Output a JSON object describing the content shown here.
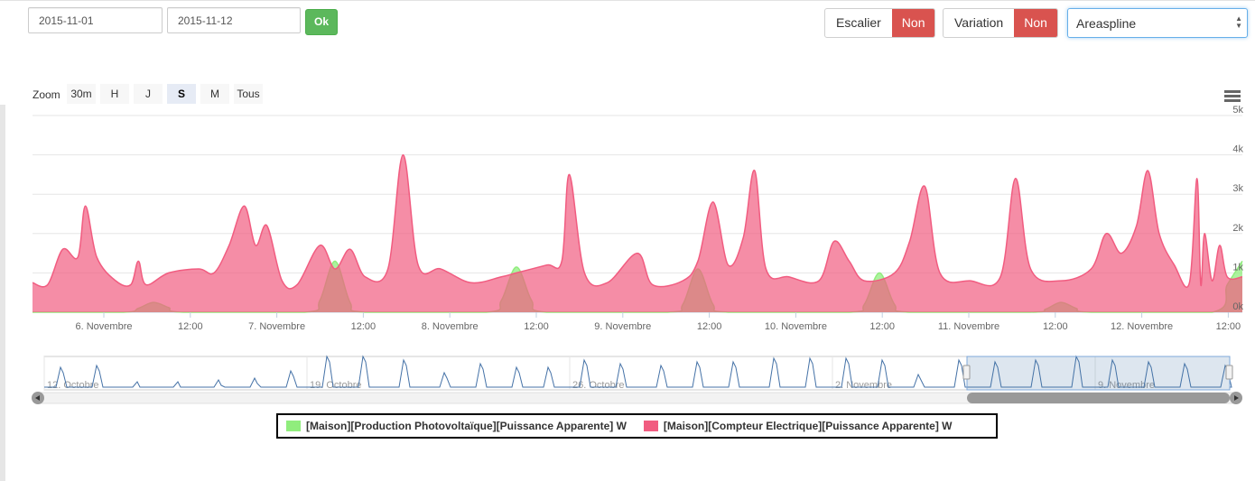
{
  "date_from": "2015-11-01",
  "date_to": "2015-11-12",
  "ok_label": "Ok",
  "escalier": {
    "label": "Escalier",
    "value": "Non"
  },
  "variation": {
    "label": "Variation",
    "value": "Non"
  },
  "chart_type_select": "Areaspline",
  "zoom": {
    "label": "Zoom",
    "buttons": [
      "30m",
      "H",
      "J",
      "S",
      "M",
      "Tous"
    ],
    "active": "S"
  },
  "colors": {
    "production": "#90ed7d",
    "compteur": "#f15c80",
    "navigator_line": "#4572a7"
  },
  "chart_data": {
    "type": "area",
    "y_ticks": [
      "0k",
      "1k",
      "2k",
      "3k",
      "4k",
      "5k"
    ],
    "ylim": [
      0,
      5000
    ],
    "xlim": [
      "2015-11-05T20:00",
      "2015-11-12T12:00"
    ],
    "x_tick_labels": [
      "6. Novembre",
      "12:00",
      "7. Novembre",
      "12:00",
      "8. Novembre",
      "12:00",
      "9. Novembre",
      "12:00",
      "10. Novembre",
      "12:00",
      "11. Novembre",
      "12:00",
      "12. Novembre",
      "12:00"
    ],
    "navigator_labels": [
      "12. Octobre",
      "19. Octobre",
      "26. Octobre",
      "2. Novembre",
      "9. Novembre"
    ],
    "series": [
      {
        "name": "[Maison][Production Photovoltaïque][Puissance Apparente] W",
        "points": [
          [
            "2015-11-05T20:00",
            0
          ],
          [
            "2015-11-06T08:00",
            0
          ],
          [
            "2015-11-06T10:00",
            100
          ],
          [
            "2015-11-06T12:00",
            250
          ],
          [
            "2015-11-06T14:00",
            120
          ],
          [
            "2015-11-06T16:00",
            0
          ],
          [
            "2015-11-07T08:00",
            0
          ],
          [
            "2015-11-07T10:00",
            300
          ],
          [
            "2015-11-07T12:00",
            1300
          ],
          [
            "2015-11-07T14:00",
            250
          ],
          [
            "2015-11-07T16:00",
            0
          ],
          [
            "2015-11-08T08:00",
            0
          ],
          [
            "2015-11-08T10:00",
            300
          ],
          [
            "2015-11-08T12:00",
            1150
          ],
          [
            "2015-11-08T14:00",
            300
          ],
          [
            "2015-11-08T16:00",
            0
          ],
          [
            "2015-11-09T08:00",
            0
          ],
          [
            "2015-11-09T10:00",
            200
          ],
          [
            "2015-11-09T12:00",
            1100
          ],
          [
            "2015-11-09T14:00",
            200
          ],
          [
            "2015-11-09T16:00",
            0
          ],
          [
            "2015-11-10T08:00",
            0
          ],
          [
            "2015-11-10T10:00",
            200
          ],
          [
            "2015-11-10T12:00",
            1000
          ],
          [
            "2015-11-10T14:00",
            200
          ],
          [
            "2015-11-10T16:00",
            0
          ],
          [
            "2015-11-11T08:00",
            0
          ],
          [
            "2015-11-11T10:00",
            80
          ],
          [
            "2015-11-11T12:00",
            250
          ],
          [
            "2015-11-11T14:00",
            100
          ],
          [
            "2015-11-11T16:00",
            0
          ],
          [
            "2015-11-12T08:00",
            0
          ],
          [
            "2015-11-12T10:00",
            700
          ],
          [
            "2015-11-12T12:00",
            1300
          ]
        ]
      },
      {
        "name": "[Maison][Compteur Electrique][Puissance Apparente] W",
        "points": [
          [
            "2015-11-05T20:00",
            750
          ],
          [
            "2015-11-05T22:00",
            700
          ],
          [
            "2015-11-06T00:00",
            1600
          ],
          [
            "2015-11-06T02:00",
            1400
          ],
          [
            "2015-11-06T03:00",
            2700
          ],
          [
            "2015-11-06T04:30",
            1400
          ],
          [
            "2015-11-06T07:00",
            800
          ],
          [
            "2015-11-06T09:00",
            700
          ],
          [
            "2015-11-06T10:00",
            1300
          ],
          [
            "2015-11-06T11:00",
            700
          ],
          [
            "2015-11-06T14:00",
            1000
          ],
          [
            "2015-11-06T18:00",
            1100
          ],
          [
            "2015-11-06T20:00",
            1000
          ],
          [
            "2015-11-06T22:00",
            1700
          ],
          [
            "2015-11-07T00:00",
            2700
          ],
          [
            "2015-11-07T01:30",
            1700
          ],
          [
            "2015-11-07T03:00",
            2200
          ],
          [
            "2015-11-07T05:00",
            800
          ],
          [
            "2015-11-07T07:00",
            700
          ],
          [
            "2015-11-07T10:00",
            1700
          ],
          [
            "2015-11-07T12:00",
            1100
          ],
          [
            "2015-11-07T14:00",
            1600
          ],
          [
            "2015-11-07T16:00",
            900
          ],
          [
            "2015-11-07T19:00",
            1100
          ],
          [
            "2015-11-07T21:00",
            4000
          ],
          [
            "2015-11-07T23:00",
            1200
          ],
          [
            "2015-11-08T02:00",
            1100
          ],
          [
            "2015-11-08T06:00",
            750
          ],
          [
            "2015-11-08T10:00",
            900
          ],
          [
            "2015-11-08T12:00",
            1000
          ],
          [
            "2015-11-08T16:00",
            1200
          ],
          [
            "2015-11-08T18:00",
            1300
          ],
          [
            "2015-11-08T19:00",
            3500
          ],
          [
            "2015-11-08T21:00",
            1000
          ],
          [
            "2015-11-09T00:00",
            750
          ],
          [
            "2015-11-09T04:00",
            1500
          ],
          [
            "2015-11-09T06:00",
            700
          ],
          [
            "2015-11-09T10:00",
            800
          ],
          [
            "2015-11-09T12:00",
            1300
          ],
          [
            "2015-11-09T14:00",
            2800
          ],
          [
            "2015-11-09T16:00",
            1200
          ],
          [
            "2015-11-09T18:00",
            1900
          ],
          [
            "2015-11-09T19:30",
            3600
          ],
          [
            "2015-11-09T21:00",
            1100
          ],
          [
            "2015-11-10T00:00",
            900
          ],
          [
            "2015-11-10T04:00",
            800
          ],
          [
            "2015-11-10T06:00",
            1800
          ],
          [
            "2015-11-10T08:00",
            1300
          ],
          [
            "2015-11-10T10:00",
            800
          ],
          [
            "2015-11-10T14:00",
            1000
          ],
          [
            "2015-11-10T16:00",
            1800
          ],
          [
            "2015-11-10T18:00",
            3200
          ],
          [
            "2015-11-10T20:00",
            1000
          ],
          [
            "2015-11-11T00:00",
            800
          ],
          [
            "2015-11-11T04:00",
            900
          ],
          [
            "2015-11-11T06:00",
            3400
          ],
          [
            "2015-11-11T08:00",
            1100
          ],
          [
            "2015-11-11T12:00",
            800
          ],
          [
            "2015-11-11T16:00",
            1100
          ],
          [
            "2015-11-11T18:00",
            2000
          ],
          [
            "2015-11-11T20:00",
            1500
          ],
          [
            "2015-11-11T22:00",
            2200
          ],
          [
            "2015-11-11T23:30",
            3600
          ],
          [
            "2015-11-12T01:00",
            2000
          ],
          [
            "2015-11-12T03:00",
            1200
          ],
          [
            "2015-11-12T05:00",
            750
          ],
          [
            "2015-11-12T06:00",
            3400
          ],
          [
            "2015-11-12T06:30",
            700
          ],
          [
            "2015-11-12T07:00",
            2000
          ],
          [
            "2015-11-12T08:00",
            800
          ],
          [
            "2015-11-12T09:00",
            1700
          ],
          [
            "2015-11-12T10:00",
            900
          ],
          [
            "2015-11-12T12:00",
            900
          ]
        ]
      }
    ],
    "legend_position": "bottom",
    "grid": true
  }
}
